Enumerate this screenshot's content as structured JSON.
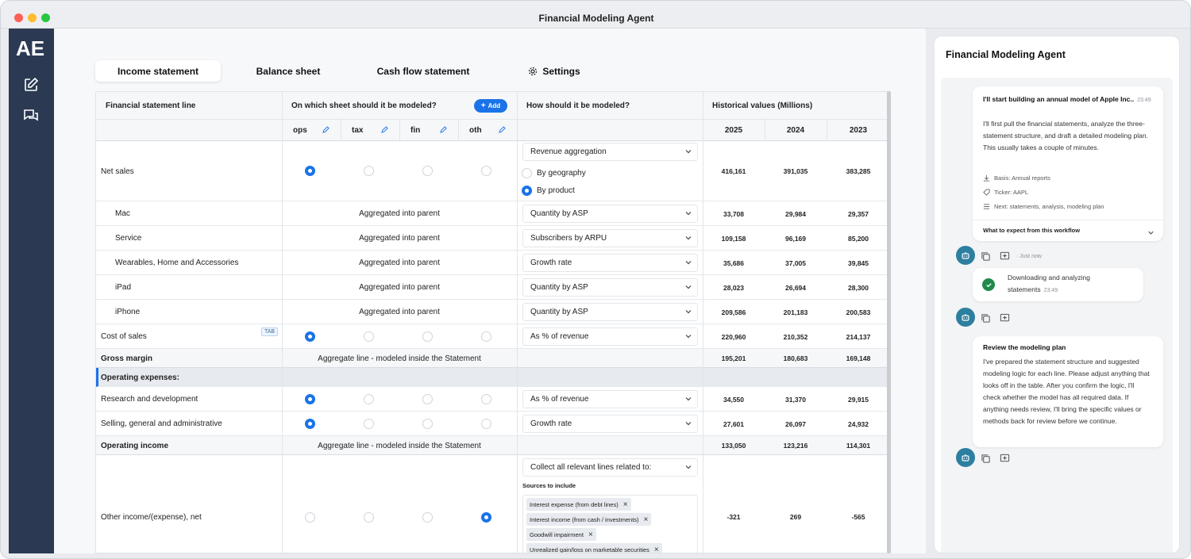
{
  "window": {
    "title": "Financial Modeling Agent"
  },
  "sidebar": {
    "logo": "AE",
    "icons": [
      "compose-icon",
      "chat-icon"
    ]
  },
  "tabs": [
    {
      "label": "Income statement",
      "active": true
    },
    {
      "label": "Balance sheet",
      "active": false
    },
    {
      "label": "Cash flow statement",
      "active": false
    },
    {
      "label": "Settings",
      "active": false,
      "icon": "gear-icon"
    }
  ],
  "table": {
    "headers": {
      "line": "Financial statement line",
      "sheet": "On which sheet should it be modeled?",
      "add_button": "Add",
      "method": "How should it be modeled?",
      "historical": "Historical values (Millions)"
    },
    "sheets": [
      "ops",
      "tax",
      "fin",
      "oth"
    ],
    "years": [
      "2025",
      "2024",
      "2023"
    ],
    "tab_badge": "TAB",
    "agg_parent": "Aggregated into parent",
    "agg_statement": "Aggregate line - modeled inside the Statement",
    "rows": {
      "net_sales": {
        "label": "Net sales",
        "method": "Revenue aggregation",
        "options": [
          "By geography",
          "By product"
        ],
        "selected_option": "By product",
        "sheet": "ops",
        "values": [
          "416,161",
          "391,035",
          "383,285"
        ]
      },
      "mac": {
        "label": "Mac",
        "method": "Quantity by ASP",
        "values": [
          "33,708",
          "29,984",
          "29,357"
        ]
      },
      "service": {
        "label": "Service",
        "method": "Subscribers by ARPU",
        "values": [
          "109,158",
          "96,169",
          "85,200"
        ]
      },
      "wearables": {
        "label": "Wearables, Home and Accessories",
        "method": "Growth rate",
        "values": [
          "35,686",
          "37,005",
          "39,845"
        ]
      },
      "ipad": {
        "label": "iPad",
        "method": "Quantity by ASP",
        "values": [
          "28,023",
          "26,694",
          "28,300"
        ]
      },
      "iphone": {
        "label": "iPhone",
        "method": "Quantity by ASP",
        "values": [
          "209,586",
          "201,183",
          "200,583"
        ]
      },
      "cost_of_sales": {
        "label": "Cost of sales",
        "method": "As % of revenue",
        "sheet": "ops",
        "values": [
          "220,960",
          "210,352",
          "214,137"
        ]
      },
      "gross_margin": {
        "label": "Gross margin",
        "values": [
          "195,201",
          "180,683",
          "169,148"
        ]
      },
      "opex_section": {
        "label": "Operating expenses:"
      },
      "rnd": {
        "label": "Research and development",
        "method": "As % of revenue",
        "sheet": "ops",
        "values": [
          "34,550",
          "31,370",
          "29,915"
        ]
      },
      "sga": {
        "label": "Selling, general and administrative",
        "method": "Growth rate",
        "sheet": "ops",
        "values": [
          "27,601",
          "26,097",
          "24,932"
        ]
      },
      "operating_income": {
        "label": "Operating income",
        "values": [
          "133,050",
          "123,216",
          "114,301"
        ]
      },
      "other_income": {
        "label": "Other income/(expense), net",
        "method": "Collect all relevant lines related to:",
        "sources_label": "Sources to include",
        "sources": [
          "Interest expense (from debt lines)",
          "Interest income (from cash / investments)",
          "Goodwill impairment",
          "Unrealized gain/loss on marketable securities"
        ],
        "sheet": "oth",
        "values": [
          "-321",
          "269",
          "-565"
        ]
      }
    }
  },
  "chat": {
    "title": "Financial Modeling Agent",
    "msg1": {
      "title": "I'll start building an annual model of Apple Inc..",
      "time": "23:49",
      "body": "I'll first pull the financial statements, analyze the three-statement structure, and draft a detailed modeling plan. This usually takes a couple of minutes.",
      "meta": [
        "Basis: Annual reports",
        "Ticker: AAPL",
        "Next: statements, analysis, modeling plan"
      ],
      "expand": "What to expect from this workflow",
      "status": "Just now"
    },
    "msg2": {
      "body": "Downloading and analyzing statements",
      "time": "23:49"
    },
    "msg3": {
      "title": "Review the modeling plan",
      "body": "I've prepared the statement structure and suggested modeling logic for each line. Please adjust anything that looks off in the table. After you confirm the logic, I'll check whether the model has all required data. If anything needs review, I'll bring the specific values or methods back for review before we continue."
    }
  },
  "colors": {
    "sidebar": "#2b3a52",
    "accent": "#1a73e8",
    "avatar": "#2d7fa0",
    "success": "#1f8a4c"
  }
}
